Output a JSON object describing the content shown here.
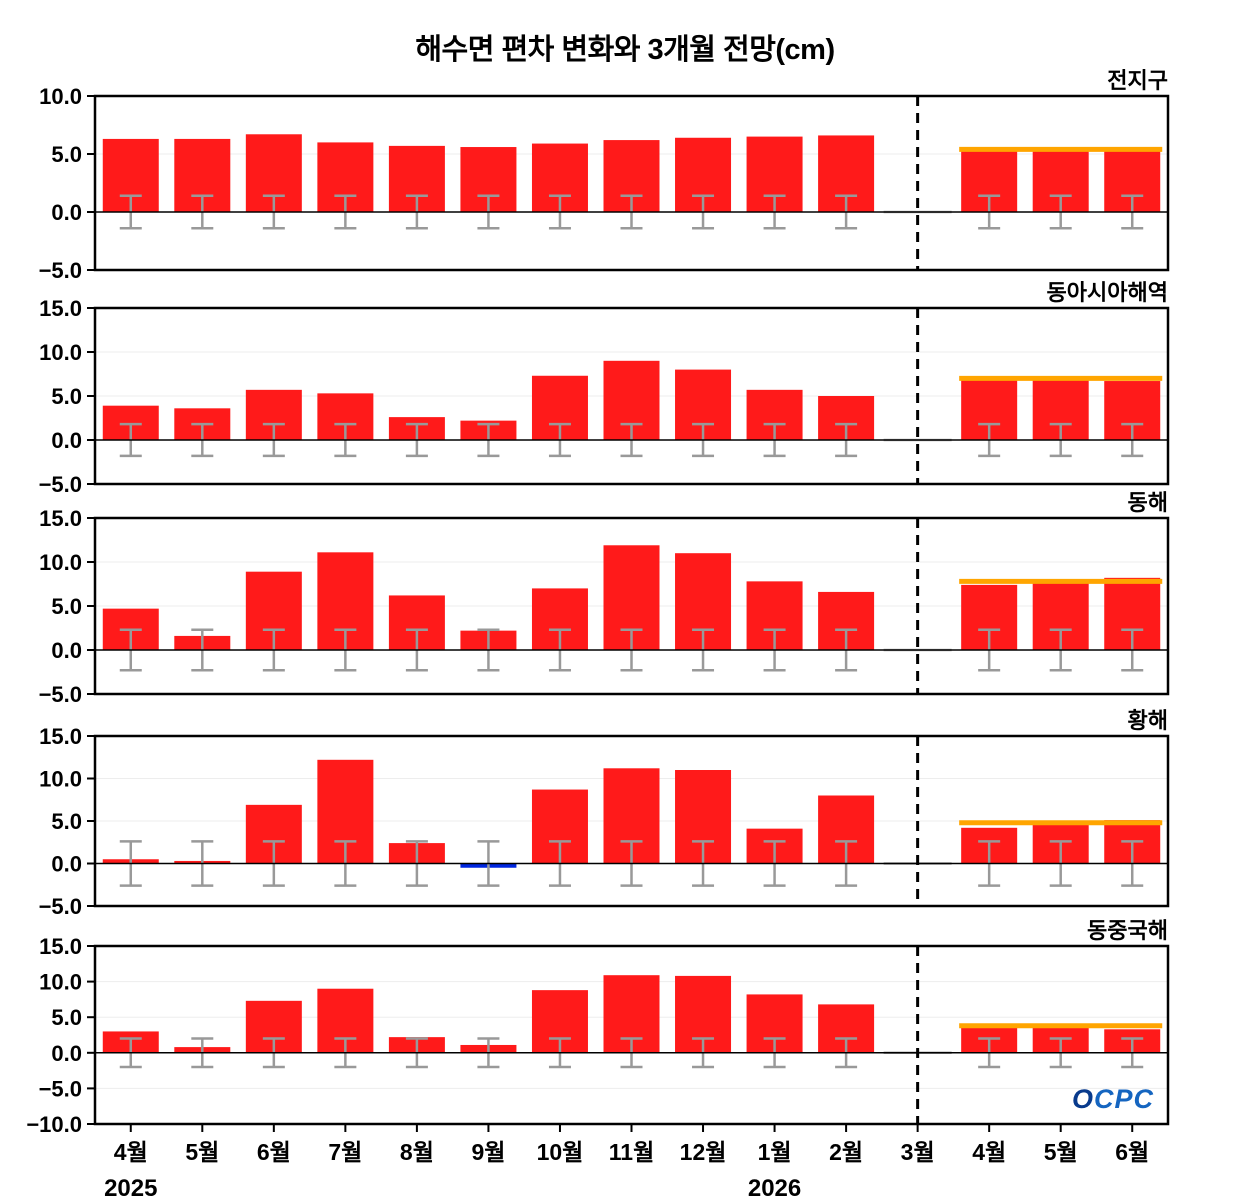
{
  "title": "해수면 편차 변화와 3개월 전망(cm)",
  "logo_text": "OCPC",
  "x_labels": [
    "4월",
    "5월",
    "6월",
    "7월",
    "8월",
    "9월",
    "10월",
    "11월",
    "12월",
    "1월",
    "2월",
    "3월",
    "4월",
    "5월",
    "6월"
  ],
  "year_labels": [
    {
      "text": "2025",
      "month_index": 0
    },
    {
      "text": "2026",
      "month_index": 9
    }
  ],
  "gap_month_index": 11,
  "forecast_start_index": 12,
  "colors": {
    "bar_positive": "#ff1a1a",
    "bar_negative": "#0026e0",
    "error_bar": "#999999",
    "gap_marker": "#aaaaaa",
    "forecast_line": "#ffa500",
    "divider": "#000000",
    "grid": "#ededed",
    "axis": "#000000",
    "logo_blue": "#1565c0"
  },
  "chart_data": [
    {
      "type": "bar",
      "title": "전지구",
      "ylim": [
        -5,
        10
      ],
      "yticks": [
        10.0,
        5.0,
        0.0,
        -5.0
      ],
      "values": [
        6.3,
        6.3,
        6.7,
        6.0,
        5.7,
        5.6,
        5.9,
        6.2,
        6.4,
        6.5,
        6.6,
        null,
        5.6,
        5.5,
        5.3
      ],
      "error": 1.4,
      "forecast_line_value": 5.4
    },
    {
      "type": "bar",
      "title": "동아시아해역",
      "ylim": [
        -5,
        15
      ],
      "yticks": [
        15.0,
        10.0,
        5.0,
        0.0,
        -5.0
      ],
      "values": [
        3.9,
        3.6,
        5.7,
        5.3,
        2.6,
        2.2,
        7.3,
        9.0,
        8.0,
        5.7,
        5.0,
        null,
        7.0,
        6.8,
        6.7
      ],
      "error": 1.8,
      "forecast_line_value": 7.0
    },
    {
      "type": "bar",
      "title": "동해",
      "ylim": [
        -5,
        15
      ],
      "yticks": [
        15.0,
        10.0,
        5.0,
        0.0,
        -5.0
      ],
      "values": [
        4.7,
        1.6,
        8.9,
        11.1,
        6.2,
        2.2,
        7.0,
        11.9,
        11.0,
        7.8,
        6.6,
        null,
        7.4,
        7.7,
        8.2
      ],
      "error": 2.3,
      "forecast_line_value": 7.8
    },
    {
      "type": "bar",
      "title": "황해",
      "ylim": [
        -5,
        15
      ],
      "yticks": [
        15.0,
        10.0,
        5.0,
        0.0,
        -5.0
      ],
      "values": [
        0.5,
        0.3,
        6.9,
        12.2,
        2.4,
        -0.5,
        8.7,
        11.2,
        11.0,
        4.1,
        8.0,
        null,
        4.2,
        4.6,
        5.1
      ],
      "error": 2.6,
      "forecast_line_value": 4.8
    },
    {
      "type": "bar",
      "title": "동중국해",
      "ylim": [
        -10,
        15
      ],
      "yticks": [
        15.0,
        10.0,
        5.0,
        0.0,
        -5.0,
        -10.0
      ],
      "values": [
        3.0,
        0.8,
        7.3,
        9.0,
        2.2,
        1.1,
        8.8,
        10.9,
        10.8,
        8.2,
        6.8,
        null,
        3.9,
        3.5,
        3.3
      ],
      "error": 2.0,
      "forecast_line_value": 3.8
    }
  ]
}
